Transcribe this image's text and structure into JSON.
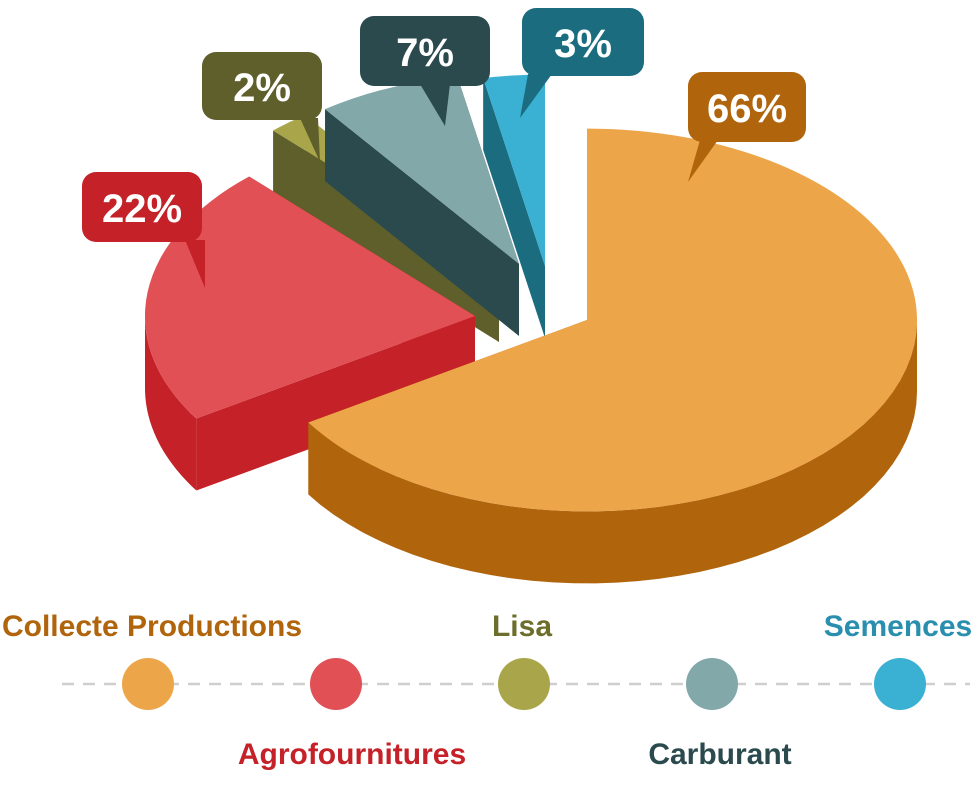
{
  "chart_data": {
    "type": "pie",
    "style": "3d-exploded",
    "title": "",
    "legend_position": "bottom",
    "slices": [
      {
        "label": "Collecte Productions",
        "value": 66,
        "value_label": "66%",
        "top_color": "#EDA54A",
        "side_color": "#B0650D",
        "text_color": "#B0650D"
      },
      {
        "label": "Agrofournitures",
        "value": 22,
        "value_label": "22%",
        "top_color": "#E05055",
        "side_color": "#C42128",
        "text_color": "#C42128"
      },
      {
        "label": "Lisa",
        "value": 2,
        "value_label": "2%",
        "top_color": "#A8A54A",
        "side_color": "#5E5F2A",
        "text_color": "#6E6E2C"
      },
      {
        "label": "Carburant",
        "value": 7,
        "value_label": "7%",
        "top_color": "#82A8AA",
        "side_color": "#2B4A4D",
        "text_color": "#2B4A4D"
      },
      {
        "label": "Semences",
        "value": 3,
        "value_label": "3%",
        "top_color": "#3AB1D3",
        "side_color": "#1C6C80",
        "text_color": "#2A8FAE"
      }
    ]
  }
}
